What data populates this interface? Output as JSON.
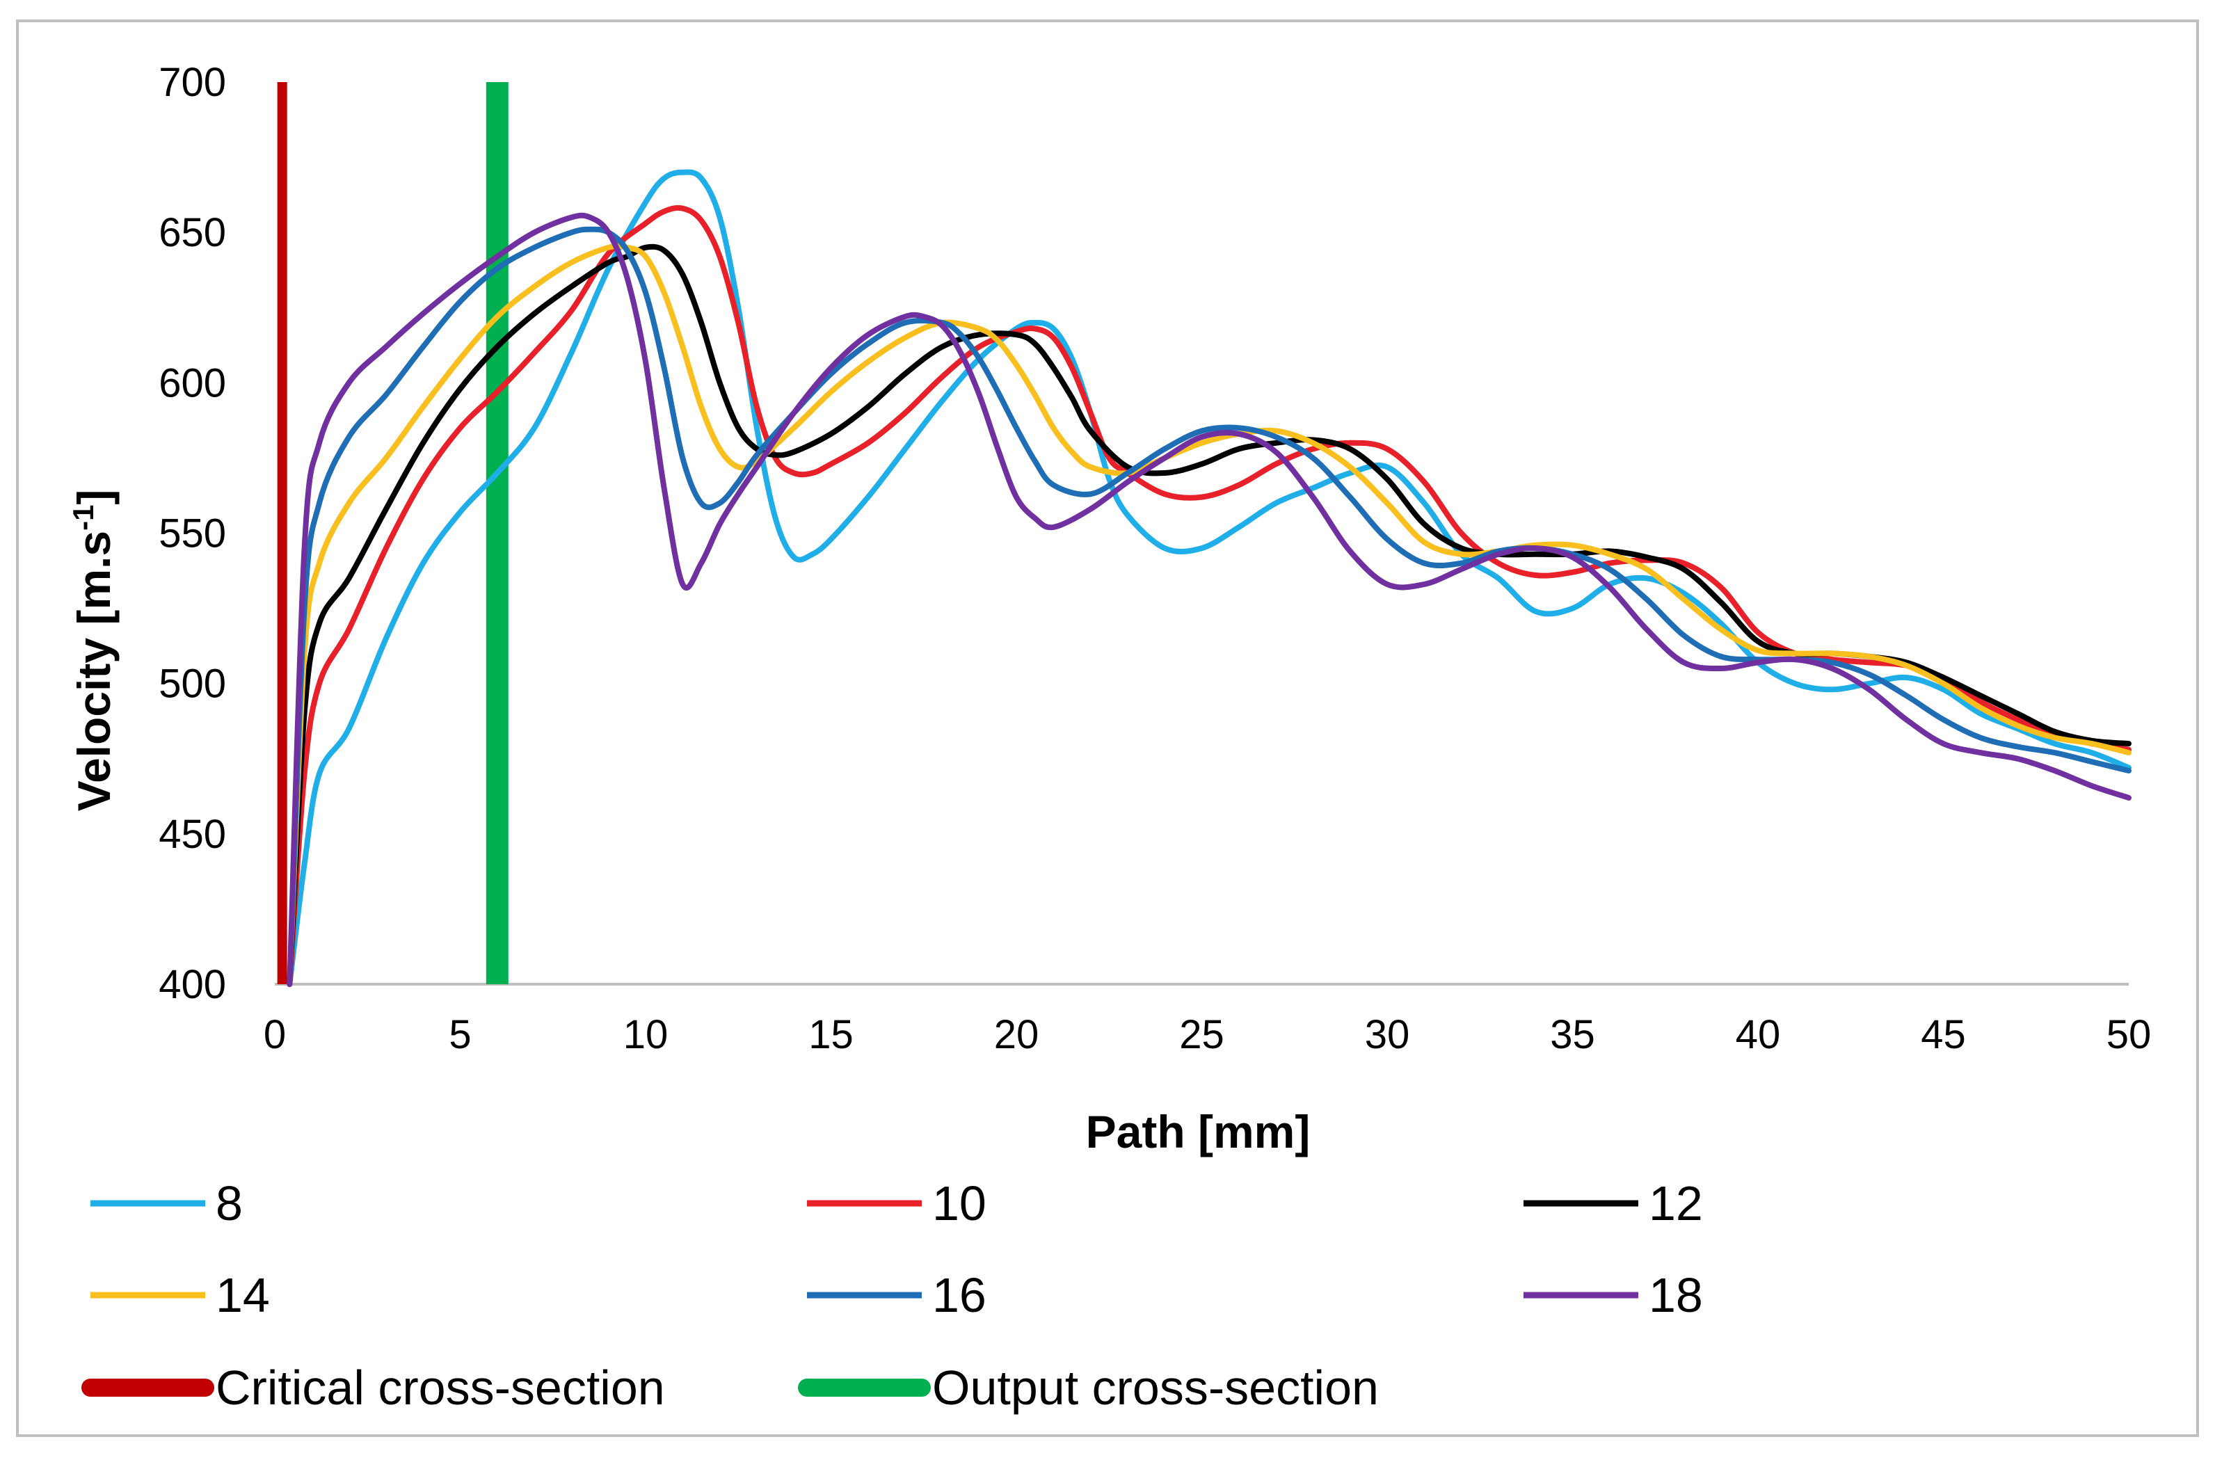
{
  "chart_data": {
    "type": "line",
    "title": "",
    "xlabel": "Path  [mm]",
    "ylabel_main": "Velocity [m.s",
    "ylabel_sup": "-1",
    "ylabel_end": "]",
    "xlim": [
      0,
      50
    ],
    "ylim": [
      400,
      700
    ],
    "x_ticks": [
      0,
      5,
      10,
      15,
      20,
      25,
      30,
      35,
      40,
      45,
      50
    ],
    "y_ticks": [
      400,
      450,
      500,
      550,
      600,
      650,
      700
    ],
    "x_tick_labels": [
      "0",
      "5",
      "10",
      "15",
      "20",
      "25",
      "30",
      "35",
      "40",
      "45",
      "50"
    ],
    "y_tick_labels": [
      "400",
      "450",
      "500",
      "550",
      "600",
      "650",
      "700"
    ],
    "grid": false,
    "legend_position": "bottom",
    "series": [
      {
        "name": "8",
        "color": "#1FAEE8",
        "x": [
          0.4,
          0.8,
          1.2,
          2,
          3,
          4,
          5,
          6,
          7,
          8,
          9,
          10,
          10.5,
          11,
          11.5,
          12,
          12.5,
          13,
          13.5,
          14,
          14.5,
          15,
          16,
          17,
          18,
          19,
          20,
          20.5,
          21,
          21.5,
          22,
          22.5,
          23,
          24,
          25,
          26,
          27,
          28,
          29,
          30,
          31,
          32,
          33,
          34,
          35,
          36,
          37,
          38,
          39,
          40,
          41,
          42,
          43,
          44,
          45,
          46,
          47,
          48,
          49,
          50
        ],
        "y": [
          400,
          440,
          470,
          485,
          515,
          540,
          557,
          570,
          585,
          610,
          638,
          660,
          668,
          670,
          668,
          655,
          625,
          585,
          555,
          542,
          543,
          548,
          562,
          578,
          594,
          608,
          618,
          620,
          618,
          608,
          590,
          568,
          556,
          545,
          545,
          552,
          560,
          565,
          570,
          572,
          560,
          543,
          535,
          524,
          525,
          533,
          535,
          530,
          520,
          507,
          500,
          498,
          500,
          502,
          498,
          490,
          485,
          480,
          477,
          472
        ]
      },
      {
        "name": "10",
        "color": "#E8202A",
        "x": [
          0.4,
          0.8,
          1.2,
          2,
          3,
          4,
          5,
          6,
          7,
          8,
          9,
          10,
          10.5,
          11,
          11.5,
          12,
          12.5,
          13,
          13.5,
          14,
          14.5,
          15,
          16,
          17,
          18,
          19,
          20,
          20.5,
          21,
          21.5,
          22,
          22.5,
          23,
          24,
          25,
          26,
          27,
          28,
          29,
          30,
          31,
          32,
          33,
          34,
          35,
          36,
          37,
          38,
          39,
          40,
          41,
          42,
          43,
          44,
          45,
          46,
          47,
          48,
          49,
          50
        ],
        "y": [
          400,
          470,
          500,
          518,
          545,
          568,
          585,
          597,
          610,
          624,
          643,
          653,
          657,
          658,
          654,
          642,
          620,
          592,
          575,
          570,
          570,
          573,
          580,
          590,
          602,
          612,
          617,
          618,
          615,
          605,
          590,
          575,
          570,
          563,
          562,
          566,
          573,
          578,
          580,
          578,
          567,
          550,
          540,
          536,
          537,
          540,
          541,
          540,
          532,
          517,
          510,
          508,
          507,
          506,
          502,
          494,
          488,
          483,
          480,
          478
        ]
      },
      {
        "name": "12",
        "color": "#000000",
        "x": [
          0.4,
          0.8,
          1.2,
          2,
          3,
          4,
          5,
          6,
          7,
          8,
          9,
          9.5,
          10,
          10.5,
          11,
          11.5,
          12,
          12.5,
          13,
          13.5,
          14,
          15,
          16,
          17,
          18,
          19,
          20,
          20.5,
          21,
          21.5,
          22,
          23,
          24,
          25,
          26,
          27,
          28,
          29,
          30,
          31,
          32,
          33,
          34,
          35,
          36,
          37,
          38,
          39,
          40,
          41,
          42,
          43,
          44,
          45,
          46,
          47,
          48,
          49,
          50
        ],
        "y": [
          400,
          490,
          520,
          535,
          558,
          580,
          598,
          612,
          623,
          632,
          640,
          642,
          645,
          644,
          636,
          620,
          600,
          585,
          578,
          576,
          577,
          583,
          592,
          603,
          612,
          616,
          616,
          613,
          605,
          595,
          584,
          572,
          570,
          573,
          578,
          580,
          581,
          578,
          568,
          553,
          545,
          543,
          543,
          543,
          544,
          542,
          538,
          527,
          514,
          510,
          510,
          509,
          507,
          502,
          496,
          490,
          484,
          481,
          480
        ]
      },
      {
        "name": "14",
        "color": "#F9BF1F",
        "x": [
          0.4,
          0.8,
          1.2,
          2,
          3,
          4,
          5,
          6,
          7,
          8,
          9,
          9.5,
          10,
          10.5,
          11,
          11.5,
          12,
          12.5,
          13,
          14,
          15,
          16,
          17,
          18,
          19,
          19.5,
          20,
          20.5,
          21,
          21.5,
          22,
          23,
          24,
          25,
          26,
          27,
          28,
          29,
          30,
          31,
          32,
          33,
          34,
          35,
          36,
          37,
          38,
          39,
          40,
          41,
          42,
          43,
          44,
          45,
          46,
          47,
          48,
          49,
          50
        ],
        "y": [
          400,
          510,
          540,
          560,
          575,
          592,
          608,
          622,
          632,
          640,
          645,
          645,
          642,
          630,
          612,
          592,
          578,
          572,
          574,
          585,
          597,
          607,
          615,
          620,
          618,
          614,
          606,
          596,
          585,
          577,
          572,
          570,
          575,
          580,
          583,
          584,
          580,
          572,
          560,
          547,
          543,
          544,
          546,
          546,
          543,
          538,
          528,
          518,
          511,
          510,
          510,
          509,
          506,
          500,
          492,
          486,
          482,
          480,
          477
        ]
      },
      {
        "name": "16",
        "color": "#1F6EB5",
        "x": [
          0.4,
          0.8,
          1.2,
          2,
          3,
          4,
          5,
          6,
          7,
          8,
          8.5,
          9,
          9.5,
          10,
          10.5,
          11,
          11.5,
          12,
          12.5,
          13,
          14,
          15,
          16,
          17,
          18,
          18.5,
          19,
          19.5,
          20,
          20.5,
          21,
          22,
          23,
          24,
          25,
          26,
          27,
          28,
          29,
          30,
          31,
          32,
          33,
          34,
          35,
          36,
          37,
          38,
          39,
          40,
          41,
          42,
          43,
          44,
          45,
          46,
          47,
          48,
          49,
          50
        ],
        "y": [
          400,
          525,
          560,
          582,
          596,
          612,
          627,
          638,
          645,
          650,
          651,
          650,
          644,
          630,
          605,
          575,
          560,
          560,
          567,
          576,
          590,
          603,
          613,
          620,
          620,
          616,
          608,
          597,
          585,
          574,
          566,
          563,
          570,
          578,
          584,
          585,
          582,
          575,
          562,
          548,
          540,
          540,
          544,
          545,
          543,
          538,
          528,
          516,
          509,
          508,
          508,
          507,
          503,
          496,
          488,
          482,
          479,
          477,
          474,
          471
        ]
      },
      {
        "name": "18",
        "color": "#7030A0",
        "x": [
          0.4,
          0.8,
          1.2,
          2,
          3,
          4,
          5,
          6,
          7,
          8,
          8.5,
          9,
          9.5,
          10,
          10.5,
          11,
          11.5,
          12,
          12.5,
          13,
          14,
          15,
          16,
          17,
          17.5,
          18,
          18.5,
          19,
          19.5,
          20,
          20.5,
          21,
          22,
          23,
          24,
          25,
          26,
          27,
          28,
          29,
          30,
          31,
          32,
          33,
          34,
          35,
          36,
          37,
          38,
          39,
          40,
          41,
          42,
          43,
          44,
          45,
          46,
          47,
          48,
          49,
          50
        ],
        "y": [
          400,
          545,
          580,
          600,
          612,
          623,
          633,
          642,
          650,
          655,
          655,
          650,
          635,
          607,
          565,
          533,
          540,
          553,
          563,
          572,
          590,
          605,
          616,
          622,
          622,
          619,
          610,
          596,
          578,
          562,
          555,
          552,
          558,
          567,
          575,
          582,
          583,
          577,
          562,
          544,
          533,
          533,
          538,
          543,
          545,
          542,
          532,
          518,
          507,
          505,
          507,
          508,
          505,
          498,
          488,
          480,
          477,
          475,
          471,
          466,
          462
        ]
      }
    ],
    "reference_lines": [
      {
        "name": "Critical cross-section",
        "x": 0.2,
        "color": "#C00000"
      },
      {
        "name": "Output cross-section",
        "x": 6.0,
        "color": "#00B050"
      }
    ]
  }
}
